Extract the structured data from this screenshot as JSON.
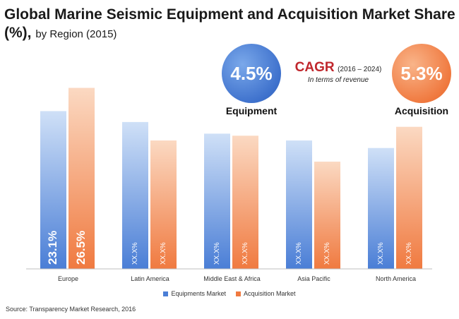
{
  "title": {
    "main": "Global Marine Seismic Equipment and Acquisition Market Share (%),",
    "sub": "by Region (2015)"
  },
  "cagr": {
    "label": "CAGR",
    "period": "(2016 – 2024)",
    "note": "In terms of revenue",
    "equipment_value": "4.5%",
    "equipment_label": "Equipment",
    "acquisition_value": "5.3%",
    "acquisition_label": "Acquisition"
  },
  "colors": {
    "equipment_top": "#cfe0f7",
    "equipment_bottom": "#4a7ed6",
    "acquisition_top": "#fbd9c2",
    "acquisition_bottom": "#f07a40",
    "baseline": "#bfbfbf"
  },
  "chart_data": {
    "type": "bar",
    "categories": [
      "Europe",
      "Latin America",
      "Middle East & Africa",
      "Asia Pacific",
      "North America"
    ],
    "series": [
      {
        "name": "Equipments Market",
        "values": [
          23.1,
          21.5,
          19.8,
          18.8,
          17.7
        ],
        "labels": [
          "23.1%",
          "XX.X%",
          "XX.X%",
          "XX.X%",
          "XX.X%"
        ]
      },
      {
        "name": "Acquisition Market",
        "values": [
          26.5,
          18.8,
          19.5,
          15.7,
          20.8
        ],
        "labels": [
          "26.5%",
          "XX.X%",
          "XX.X%",
          "XX.X%",
          "XX.X%"
        ]
      }
    ],
    "ylim": [
      0,
      28
    ],
    "grid": false,
    "legend_position": "bottom"
  },
  "source": "Source: Transparency Market Research, 2016"
}
